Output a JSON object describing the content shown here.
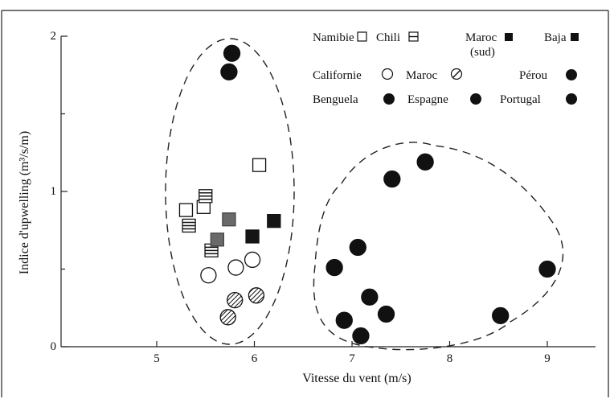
{
  "chart_data": {
    "type": "scatter",
    "xlabel": "Vitesse du vent (m/s)",
    "ylabel": "Indice d'upwelling (m³/s/m)",
    "xlim": [
      4.2,
      9.5
    ],
    "ylim": [
      0,
      2
    ],
    "x_ticks": [
      5,
      6,
      7,
      8,
      9
    ],
    "y_ticks": [
      0,
      1,
      2
    ],
    "y_tick_labels": [
      "0",
      "1",
      "2"
    ],
    "grid": false,
    "legend_placement": "top-right",
    "legend": [
      {
        "id": "namibie",
        "label": "Namibie",
        "marker": "square-open"
      },
      {
        "id": "chili",
        "label": "Chili",
        "marker": "square-striped"
      },
      {
        "id": "maroc-sud",
        "label": "Maroc",
        "sublabel": "(sud)",
        "marker": "square-filled"
      },
      {
        "id": "baja",
        "label": "Baja",
        "marker": "square-filled"
      },
      {
        "id": "californie",
        "label": "Californie",
        "marker": "circle-open"
      },
      {
        "id": "maroc",
        "label": "Maroc",
        "marker": "circle-hatched"
      },
      {
        "id": "perou",
        "label": "Pérou",
        "marker": "circle-filled"
      },
      {
        "id": "benguela",
        "label": "Benguela",
        "marker": "circle-filled"
      },
      {
        "id": "espagne",
        "label": "Espagne",
        "marker": "circle-filled"
      },
      {
        "id": "portugal",
        "label": "Portugal",
        "marker": "circle-filled"
      }
    ],
    "points": [
      {
        "x": 6.05,
        "y": 1.17,
        "marker": "square-open"
      },
      {
        "x": 5.3,
        "y": 0.88,
        "marker": "square-open"
      },
      {
        "x": 5.48,
        "y": 0.9,
        "marker": "square-open"
      },
      {
        "x": 5.5,
        "y": 0.97,
        "marker": "square-striped"
      },
      {
        "x": 5.33,
        "y": 0.78,
        "marker": "square-striped"
      },
      {
        "x": 5.56,
        "y": 0.62,
        "marker": "square-striped"
      },
      {
        "x": 5.74,
        "y": 0.82,
        "marker": "square-gray"
      },
      {
        "x": 5.62,
        "y": 0.69,
        "marker": "square-gray"
      },
      {
        "x": 5.98,
        "y": 0.71,
        "marker": "square-filled"
      },
      {
        "x": 6.2,
        "y": 0.81,
        "marker": "square-filled"
      },
      {
        "x": 5.53,
        "y": 0.46,
        "marker": "circle-open"
      },
      {
        "x": 5.81,
        "y": 0.51,
        "marker": "circle-open"
      },
      {
        "x": 5.98,
        "y": 0.56,
        "marker": "circle-open"
      },
      {
        "x": 5.8,
        "y": 0.3,
        "marker": "circle-hatched"
      },
      {
        "x": 6.02,
        "y": 0.33,
        "marker": "circle-hatched"
      },
      {
        "x": 5.73,
        "y": 0.19,
        "marker": "circle-hatched"
      },
      {
        "x": 5.77,
        "y": 1.89,
        "marker": "circle-filled"
      },
      {
        "x": 5.74,
        "y": 1.77,
        "marker": "circle-filled"
      },
      {
        "x": 7.75,
        "y": 1.19,
        "marker": "circle-filled"
      },
      {
        "x": 7.41,
        "y": 1.08,
        "marker": "circle-filled"
      },
      {
        "x": 7.06,
        "y": 0.64,
        "marker": "circle-filled"
      },
      {
        "x": 6.82,
        "y": 0.51,
        "marker": "circle-filled"
      },
      {
        "x": 7.18,
        "y": 0.32,
        "marker": "circle-filled"
      },
      {
        "x": 7.35,
        "y": 0.21,
        "marker": "circle-filled"
      },
      {
        "x": 6.92,
        "y": 0.17,
        "marker": "circle-filled"
      },
      {
        "x": 7.09,
        "y": 0.07,
        "marker": "circle-filled"
      },
      {
        "x": 9.0,
        "y": 0.5,
        "marker": "circle-filled"
      },
      {
        "x": 8.52,
        "y": 0.2,
        "marker": "circle-filled"
      }
    ]
  }
}
